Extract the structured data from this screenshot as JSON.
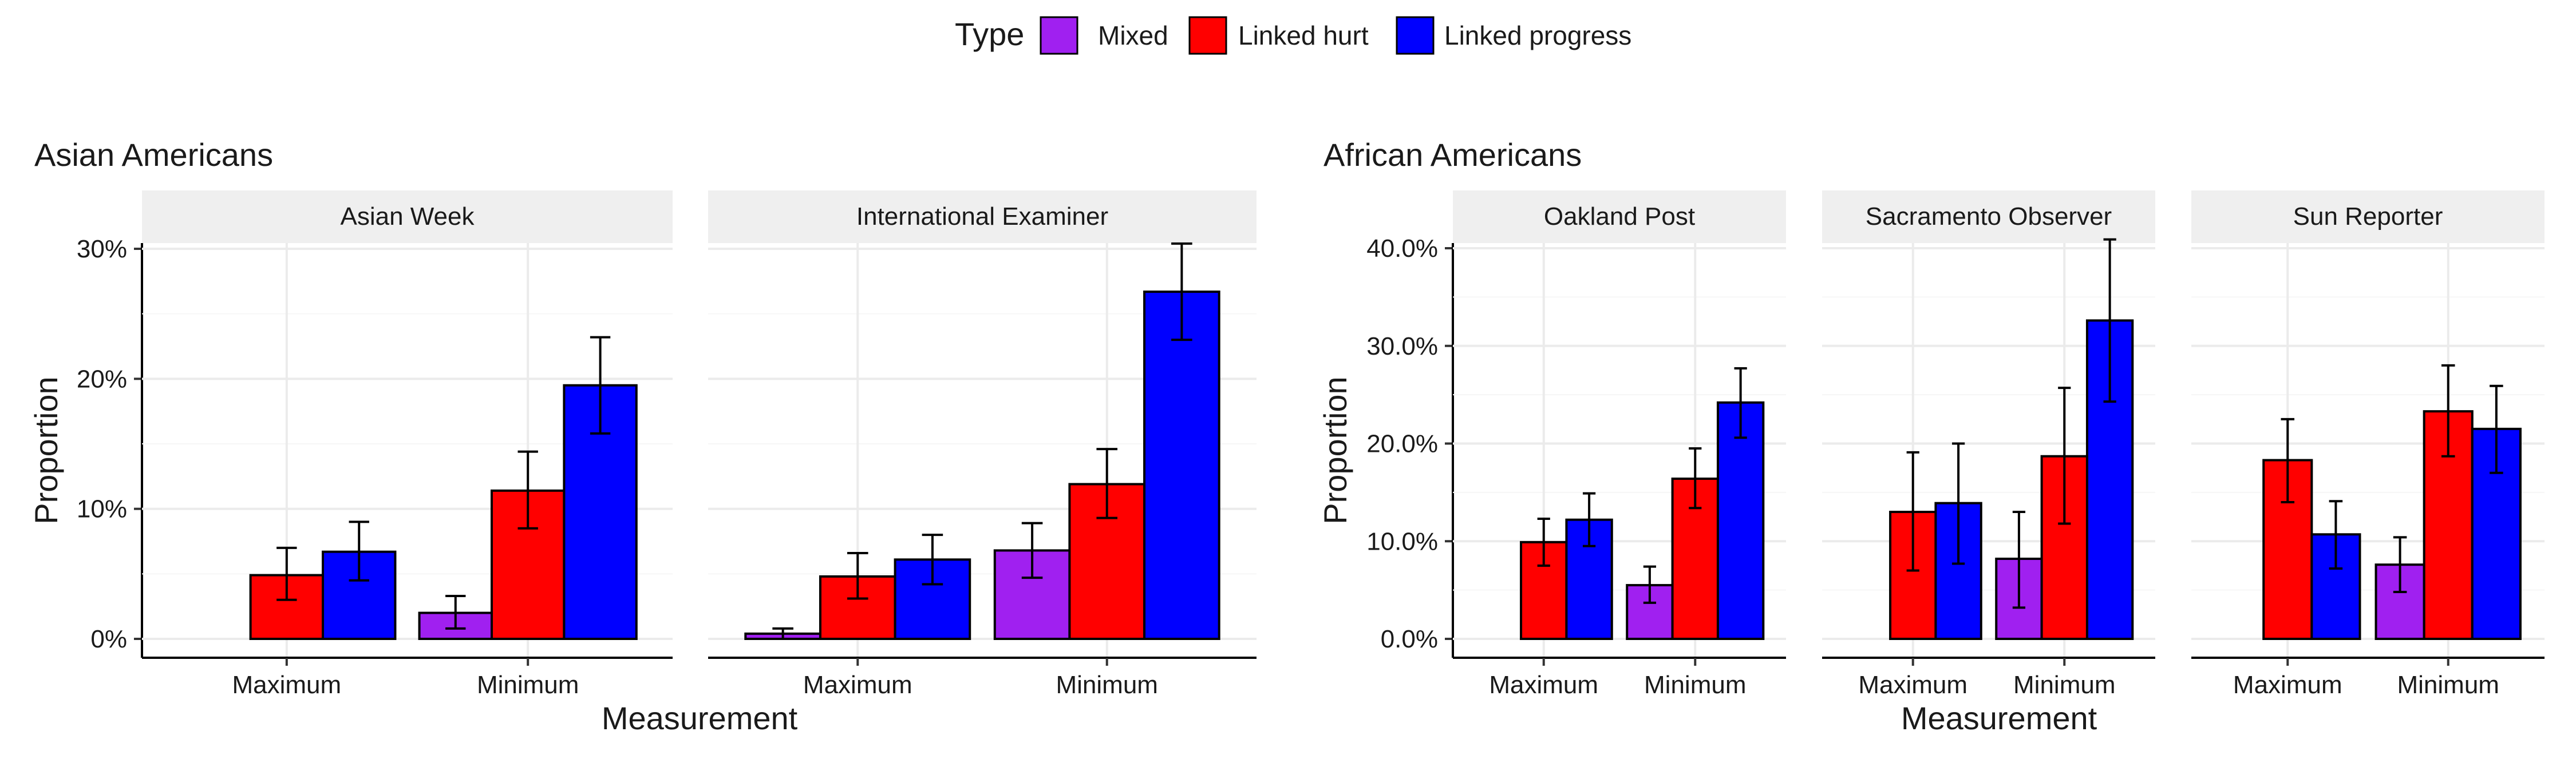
{
  "legend": {
    "title": "Type",
    "items": [
      {
        "label": "Mixed",
        "color": "#A020F0"
      },
      {
        "label": "Linked hurt",
        "color": "#FF0000"
      },
      {
        "label": "Linked progress",
        "color": "#0000FF"
      }
    ]
  },
  "chart_data": [
    {
      "type": "bar",
      "title": "Asian Americans",
      "xlabel": "Measurement",
      "ylabel": "Proportion",
      "ylim": [
        0,
        0.32
      ],
      "yticks": [
        0,
        0.1,
        0.2,
        0.3
      ],
      "ytick_labels": [
        "0%",
        "10%",
        "20%",
        "30%"
      ],
      "categories": [
        "Maximum",
        "Minimum"
      ],
      "series_names": [
        "Mixed",
        "Linked hurt",
        "Linked progress"
      ],
      "legend_position": "top",
      "grid": true,
      "panels": [
        {
          "title": "Asian Week",
          "series": [
            {
              "name": "Mixed",
              "values": [
                0.0,
                0.02
              ],
              "err_low": [
                0.0,
                0.008
              ],
              "err_high": [
                0.0,
                0.033
              ]
            },
            {
              "name": "Linked hurt",
              "values": [
                0.049,
                0.114
              ],
              "err_low": [
                0.03,
                0.085
              ],
              "err_high": [
                0.07,
                0.144
              ]
            },
            {
              "name": "Linked progress",
              "values": [
                0.067,
                0.195
              ],
              "err_low": [
                0.045,
                0.158
              ],
              "err_high": [
                0.09,
                0.232
              ]
            }
          ]
        },
        {
          "title": "International Examiner",
          "series": [
            {
              "name": "Mixed",
              "values": [
                0.004,
                0.068
              ],
              "err_low": [
                0.0,
                0.047
              ],
              "err_high": [
                0.008,
                0.089
              ]
            },
            {
              "name": "Linked hurt",
              "values": [
                0.048,
                0.119
              ],
              "err_low": [
                0.031,
                0.093
              ],
              "err_high": [
                0.066,
                0.146
              ]
            },
            {
              "name": "Linked progress",
              "values": [
                0.061,
                0.267
              ],
              "err_low": [
                0.042,
                0.23
              ],
              "err_high": [
                0.08,
                0.304
              ]
            }
          ]
        }
      ]
    },
    {
      "type": "bar",
      "title": "African Americans",
      "xlabel": "Measurement",
      "ylabel": "Proportion",
      "ylim": [
        0,
        0.43
      ],
      "yticks": [
        0,
        0.1,
        0.2,
        0.3,
        0.4
      ],
      "ytick_labels": [
        "0.0%",
        "10.0%",
        "20.0%",
        "30.0%",
        "40.0%"
      ],
      "categories": [
        "Maximum",
        "Minimum"
      ],
      "series_names": [
        "Mixed",
        "Linked hurt",
        "Linked progress"
      ],
      "legend_position": "top",
      "grid": true,
      "panels": [
        {
          "title": "Oakland Post",
          "series": [
            {
              "name": "Mixed",
              "values": [
                0.0,
                0.055
              ],
              "err_low": [
                0.0,
                0.037
              ],
              "err_high": [
                0.0,
                0.074
              ]
            },
            {
              "name": "Linked hurt",
              "values": [
                0.099,
                0.164
              ],
              "err_low": [
                0.075,
                0.134
              ],
              "err_high": [
                0.123,
                0.195
              ]
            },
            {
              "name": "Linked progress",
              "values": [
                0.122,
                0.242
              ],
              "err_low": [
                0.095,
                0.206
              ],
              "err_high": [
                0.149,
                0.277
              ]
            }
          ]
        },
        {
          "title": "Sacramento Observer",
          "series": [
            {
              "name": "Mixed",
              "values": [
                0.0,
                0.082
              ],
              "err_low": [
                0.0,
                0.032
              ],
              "err_high": [
                0.0,
                0.13
              ]
            },
            {
              "name": "Linked hurt",
              "values": [
                0.13,
                0.187
              ],
              "err_low": [
                0.07,
                0.118
              ],
              "err_high": [
                0.191,
                0.257
              ]
            },
            {
              "name": "Linked progress",
              "values": [
                0.139,
                0.326
              ],
              "err_low": [
                0.077,
                0.243
              ],
              "err_high": [
                0.2,
                0.409
              ]
            }
          ]
        },
        {
          "title": "Sun Reporter",
          "series": [
            {
              "name": "Mixed",
              "values": [
                0.0,
                0.076
              ],
              "err_low": [
                0.0,
                0.048
              ],
              "err_high": [
                0.0,
                0.104
              ]
            },
            {
              "name": "Linked hurt",
              "values": [
                0.183,
                0.233
              ],
              "err_low": [
                0.14,
                0.187
              ],
              "err_high": [
                0.225,
                0.28
              ]
            },
            {
              "name": "Linked progress",
              "values": [
                0.107,
                0.215
              ],
              "err_low": [
                0.072,
                0.17
              ],
              "err_high": [
                0.141,
                0.259
              ]
            }
          ]
        }
      ]
    }
  ]
}
